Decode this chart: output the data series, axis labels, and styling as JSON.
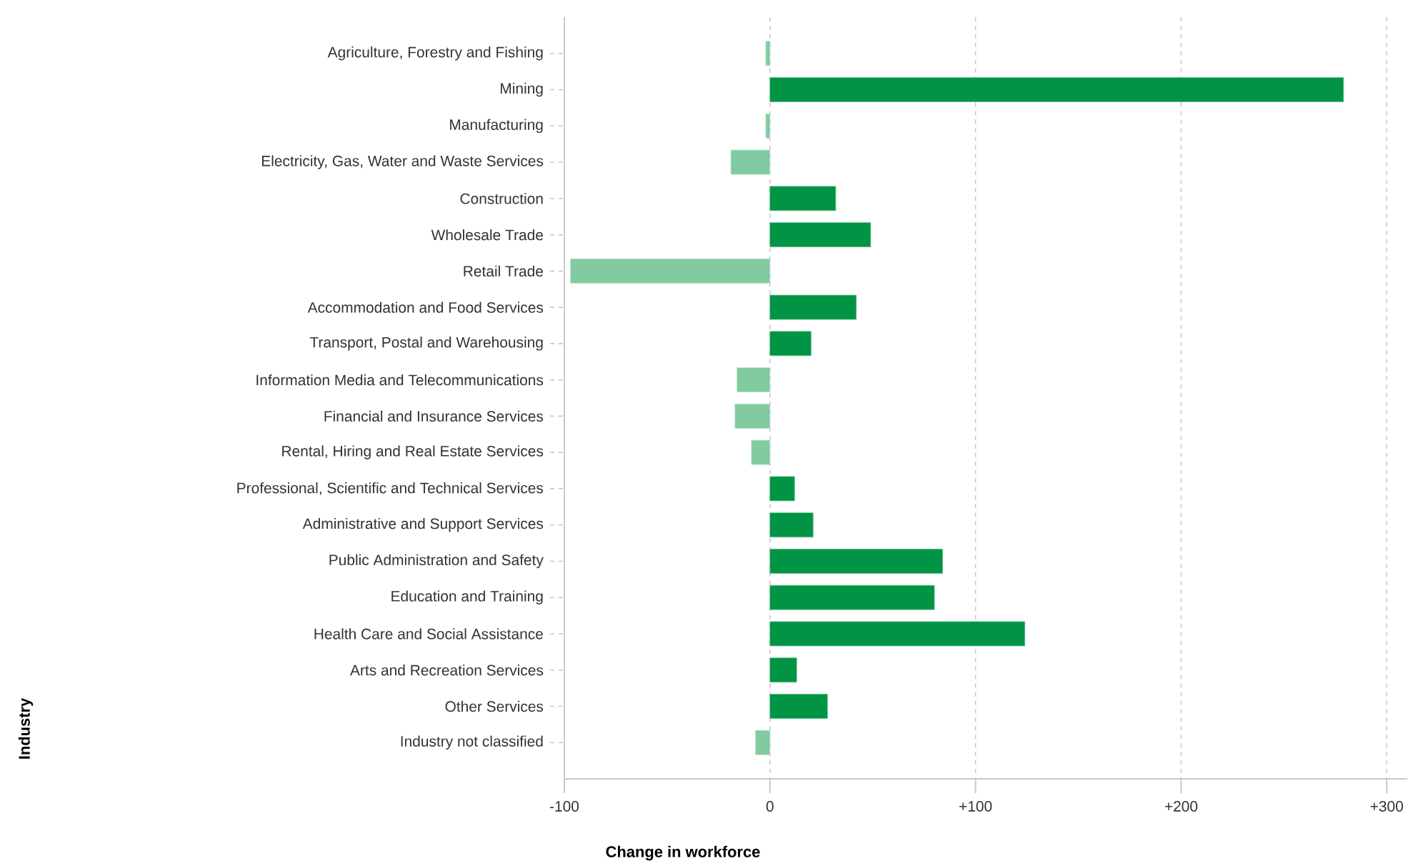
{
  "chart_data": {
    "type": "bar",
    "orientation": "horizontal",
    "xlabel": "Change in workforce",
    "annotations": [
      "Industry"
    ],
    "categories": [
      "Agriculture, Forestry and Fishing",
      "Mining",
      "Manufacturing",
      "Electricity, Gas, Water and Waste Services",
      "Construction",
      "Wholesale Trade",
      "Retail Trade",
      "Accommodation and Food Services",
      "Transport, Postal and Warehousing",
      "Information Media and Telecommunications",
      "Financial and Insurance Services",
      "Rental, Hiring and Real Estate Services",
      "Professional, Scientific and Technical Services",
      "Administrative and Support Services",
      "Public Administration and Safety",
      "Education and Training",
      "Health Care and Social Assistance",
      "Arts and Recreation Services",
      "Other Services",
      "Industry not classified"
    ],
    "values": [
      -2,
      279,
      -2,
      -19,
      32,
      49,
      -97,
      42,
      20,
      -16,
      -17,
      -9,
      12,
      21,
      84,
      80,
      124,
      13,
      28,
      -7
    ],
    "colors": [
      "#82cba0",
      "#009444",
      "#82cba0",
      "#82cba0",
      "#009444",
      "#009444",
      "#82cba0",
      "#009444",
      "#009444",
      "#82cba0",
      "#82cba0",
      "#82cba0",
      "#009444",
      "#009444",
      "#009444",
      "#009444",
      "#009444",
      "#009444",
      "#009444",
      "#82cba0"
    ],
    "xlim": [
      -100,
      310
    ],
    "xticks": [
      -100,
      0,
      {
        "value": 100,
        "label": "+100"
      },
      {
        "value": 200,
        "label": "+200"
      },
      {
        "value": 300,
        "label": "+300"
      }
    ],
    "grid": "x"
  }
}
